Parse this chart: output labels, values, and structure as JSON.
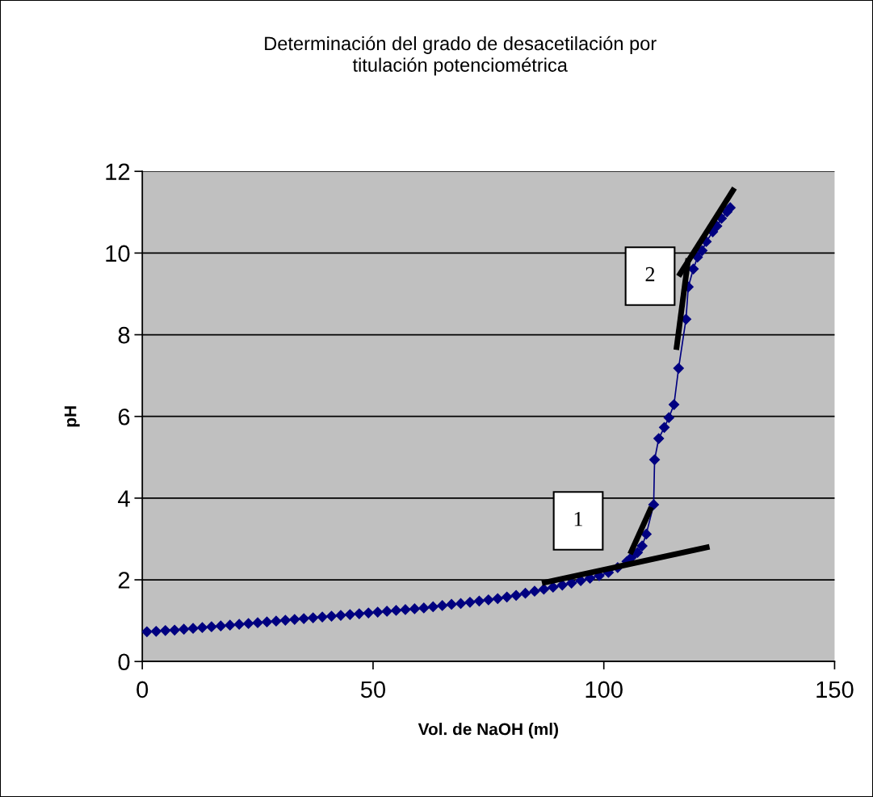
{
  "chart_data": {
    "type": "line",
    "title": "Determinación del grado de desacetilación por\ntitulación potenciométrica",
    "xlabel": "Vol. de NaOH (ml)",
    "ylabel": "pH",
    "xlim": [
      0,
      150
    ],
    "xticks": [
      0,
      50,
      100,
      150
    ],
    "ylim": [
      0,
      12
    ],
    "yticks": [
      0,
      2,
      4,
      6,
      8,
      10,
      12
    ],
    "grid": "y",
    "legend": false,
    "series": [
      {
        "color": "#000080",
        "marker": "diamond",
        "x": [
          1,
          3,
          5,
          7,
          9,
          11,
          13,
          15,
          17,
          19,
          21,
          23,
          25,
          27,
          29,
          31,
          33,
          35,
          37,
          39,
          41,
          43,
          45,
          47,
          49,
          51,
          53,
          55,
          57,
          59,
          61,
          63,
          65,
          67,
          69,
          71,
          73,
          75,
          77,
          79,
          81,
          83,
          85,
          87,
          89,
          91,
          93,
          95,
          97,
          99,
          101,
          103,
          105,
          106,
          107.3,
          108.3,
          109.2,
          110.8,
          111,
          111.9,
          113.1,
          114.1,
          115.2,
          116.2,
          117.8,
          118.3,
          119.4,
          120.3,
          121.3,
          122.2,
          123.6,
          124.5,
          125.5,
          126.7,
          127.4
        ],
        "values": [
          0.73,
          0.74,
          0.76,
          0.77,
          0.79,
          0.81,
          0.83,
          0.85,
          0.87,
          0.89,
          0.91,
          0.93,
          0.95,
          0.97,
          0.99,
          1.01,
          1.03,
          1.05,
          1.07,
          1.09,
          1.11,
          1.13,
          1.15,
          1.17,
          1.19,
          1.21,
          1.23,
          1.25,
          1.27,
          1.29,
          1.31,
          1.34,
          1.37,
          1.4,
          1.42,
          1.45,
          1.48,
          1.51,
          1.54,
          1.58,
          1.62,
          1.67,
          1.72,
          1.77,
          1.82,
          1.87,
          1.92,
          1.98,
          2.04,
          2.1,
          2.18,
          2.3,
          2.45,
          2.55,
          2.67,
          2.83,
          3.12,
          3.84,
          4.94,
          5.46,
          5.73,
          5.97,
          6.29,
          7.18,
          8.38,
          9.17,
          9.61,
          9.9,
          10.06,
          10.28,
          10.52,
          10.66,
          10.85,
          11.01,
          11.11
        ]
      },
      {
        "color": "#000000",
        "marker": "none",
        "x": [
          86.6,
          122.9
        ],
        "values": [
          1.92,
          2.81
        ]
      },
      {
        "color": "#000000",
        "marker": "none",
        "x": [
          105.7,
          110.3
        ],
        "values": [
          2.63,
          3.78
        ]
      },
      {
        "color": "#000000",
        "marker": "none",
        "x": [
          115.7,
          118.3
        ],
        "values": [
          7.63,
          9.87
        ]
      },
      {
        "color": "#000000",
        "marker": "none",
        "x": [
          116.2,
          128.3
        ],
        "values": [
          9.43,
          11.59
        ]
      }
    ],
    "annotations": [
      "1",
      "2"
    ]
  }
}
